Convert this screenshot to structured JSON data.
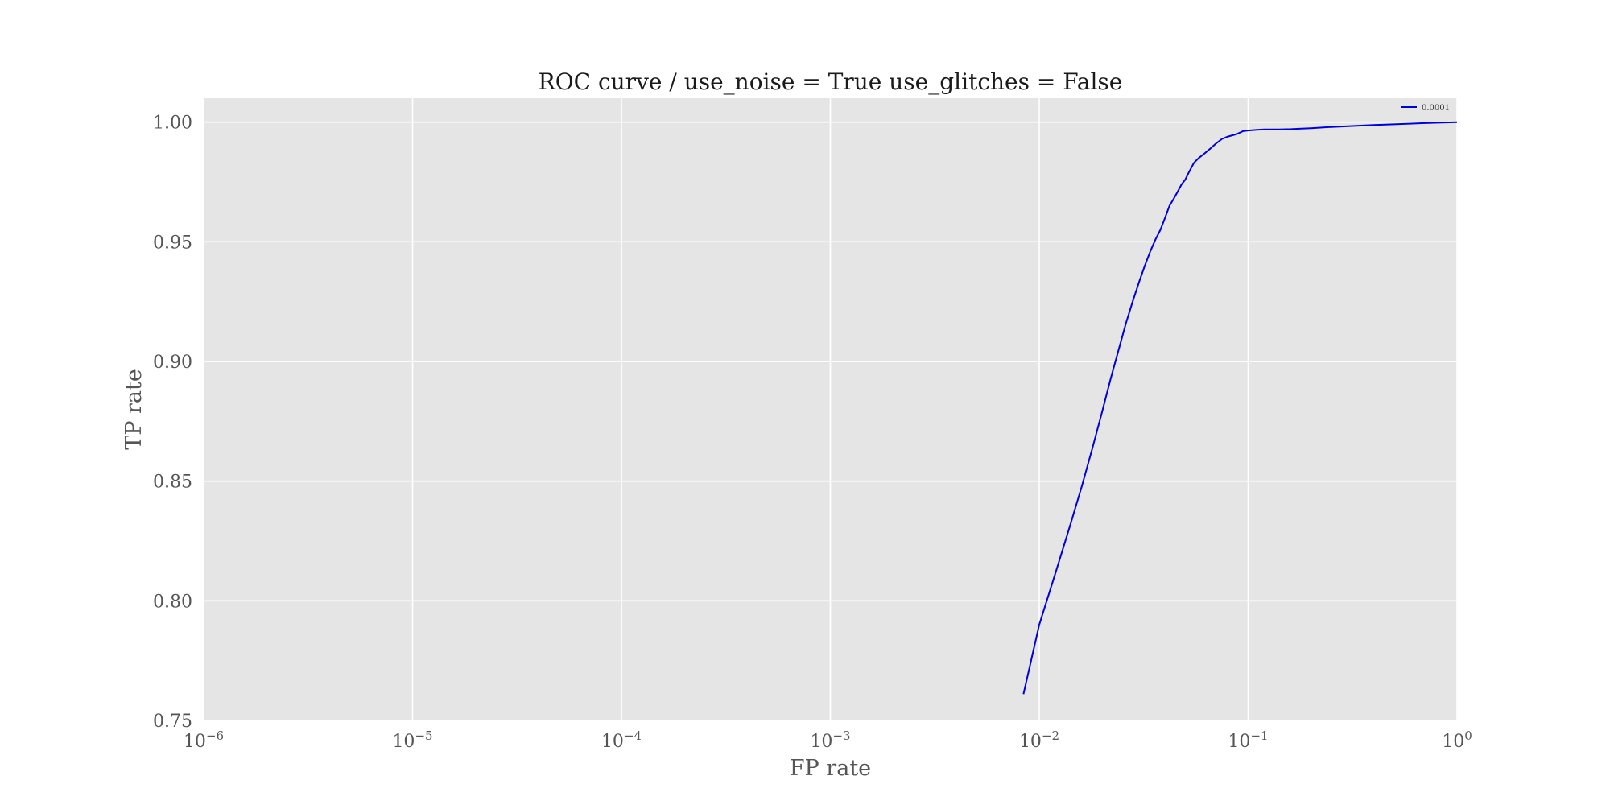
{
  "chart_data": {
    "type": "line",
    "title": "ROC curve / use_noise = True  use_glitches = False",
    "xlabel": "FP rate",
    "ylabel": "TP rate",
    "xscale": "log",
    "xlim": [
      1e-06,
      1
    ],
    "ylim": [
      0.75,
      1.01
    ],
    "grid": true,
    "legend_position": "top-right",
    "colors": {
      "background": "#e5e5e5",
      "grid": "#ffffff",
      "series": "#0000dd"
    },
    "x_ticks": [
      {
        "value": 1e-06,
        "base": "10",
        "exp": "−6"
      },
      {
        "value": 1e-05,
        "base": "10",
        "exp": "−5"
      },
      {
        "value": 0.0001,
        "base": "10",
        "exp": "−4"
      },
      {
        "value": 0.001,
        "base": "10",
        "exp": "−3"
      },
      {
        "value": 0.01,
        "base": "10",
        "exp": "−2"
      },
      {
        "value": 0.1,
        "base": "10",
        "exp": "−1"
      },
      {
        "value": 1,
        "base": "10",
        "exp": "0"
      }
    ],
    "y_ticks": [
      {
        "value": 0.75,
        "label": "0.75"
      },
      {
        "value": 0.8,
        "label": "0.80"
      },
      {
        "value": 0.85,
        "label": "0.85"
      },
      {
        "value": 0.9,
        "label": "0.90"
      },
      {
        "value": 0.95,
        "label": "0.95"
      },
      {
        "value": 1.0,
        "label": "1.00"
      }
    ],
    "series": [
      {
        "name": "0.0001",
        "color": "#0000dd",
        "x": [
          0.0084,
          0.01,
          0.012,
          0.014,
          0.016,
          0.018,
          0.02,
          0.022,
          0.024,
          0.026,
          0.028,
          0.03,
          0.032,
          0.034,
          0.036,
          0.038,
          0.04,
          0.042,
          0.044,
          0.046,
          0.048,
          0.05,
          0.052,
          0.055,
          0.058,
          0.062,
          0.066,
          0.07,
          0.075,
          0.08,
          0.088,
          0.095,
          0.1,
          0.11,
          0.12,
          0.14,
          0.16,
          0.18,
          0.2,
          0.25,
          0.3,
          0.4,
          0.5,
          0.7,
          1.0
        ],
        "y": [
          0.761,
          0.79,
          0.812,
          0.831,
          0.848,
          0.864,
          0.879,
          0.893,
          0.905,
          0.916,
          0.925,
          0.933,
          0.94,
          0.946,
          0.951,
          0.955,
          0.96,
          0.965,
          0.968,
          0.971,
          0.974,
          0.976,
          0.979,
          0.983,
          0.985,
          0.987,
          0.989,
          0.991,
          0.993,
          0.994,
          0.995,
          0.9963,
          0.9965,
          0.9968,
          0.997,
          0.997,
          0.9971,
          0.9973,
          0.9975,
          0.998,
          0.9983,
          0.9988,
          0.9991,
          0.9996,
          1.0
        ]
      }
    ]
  }
}
